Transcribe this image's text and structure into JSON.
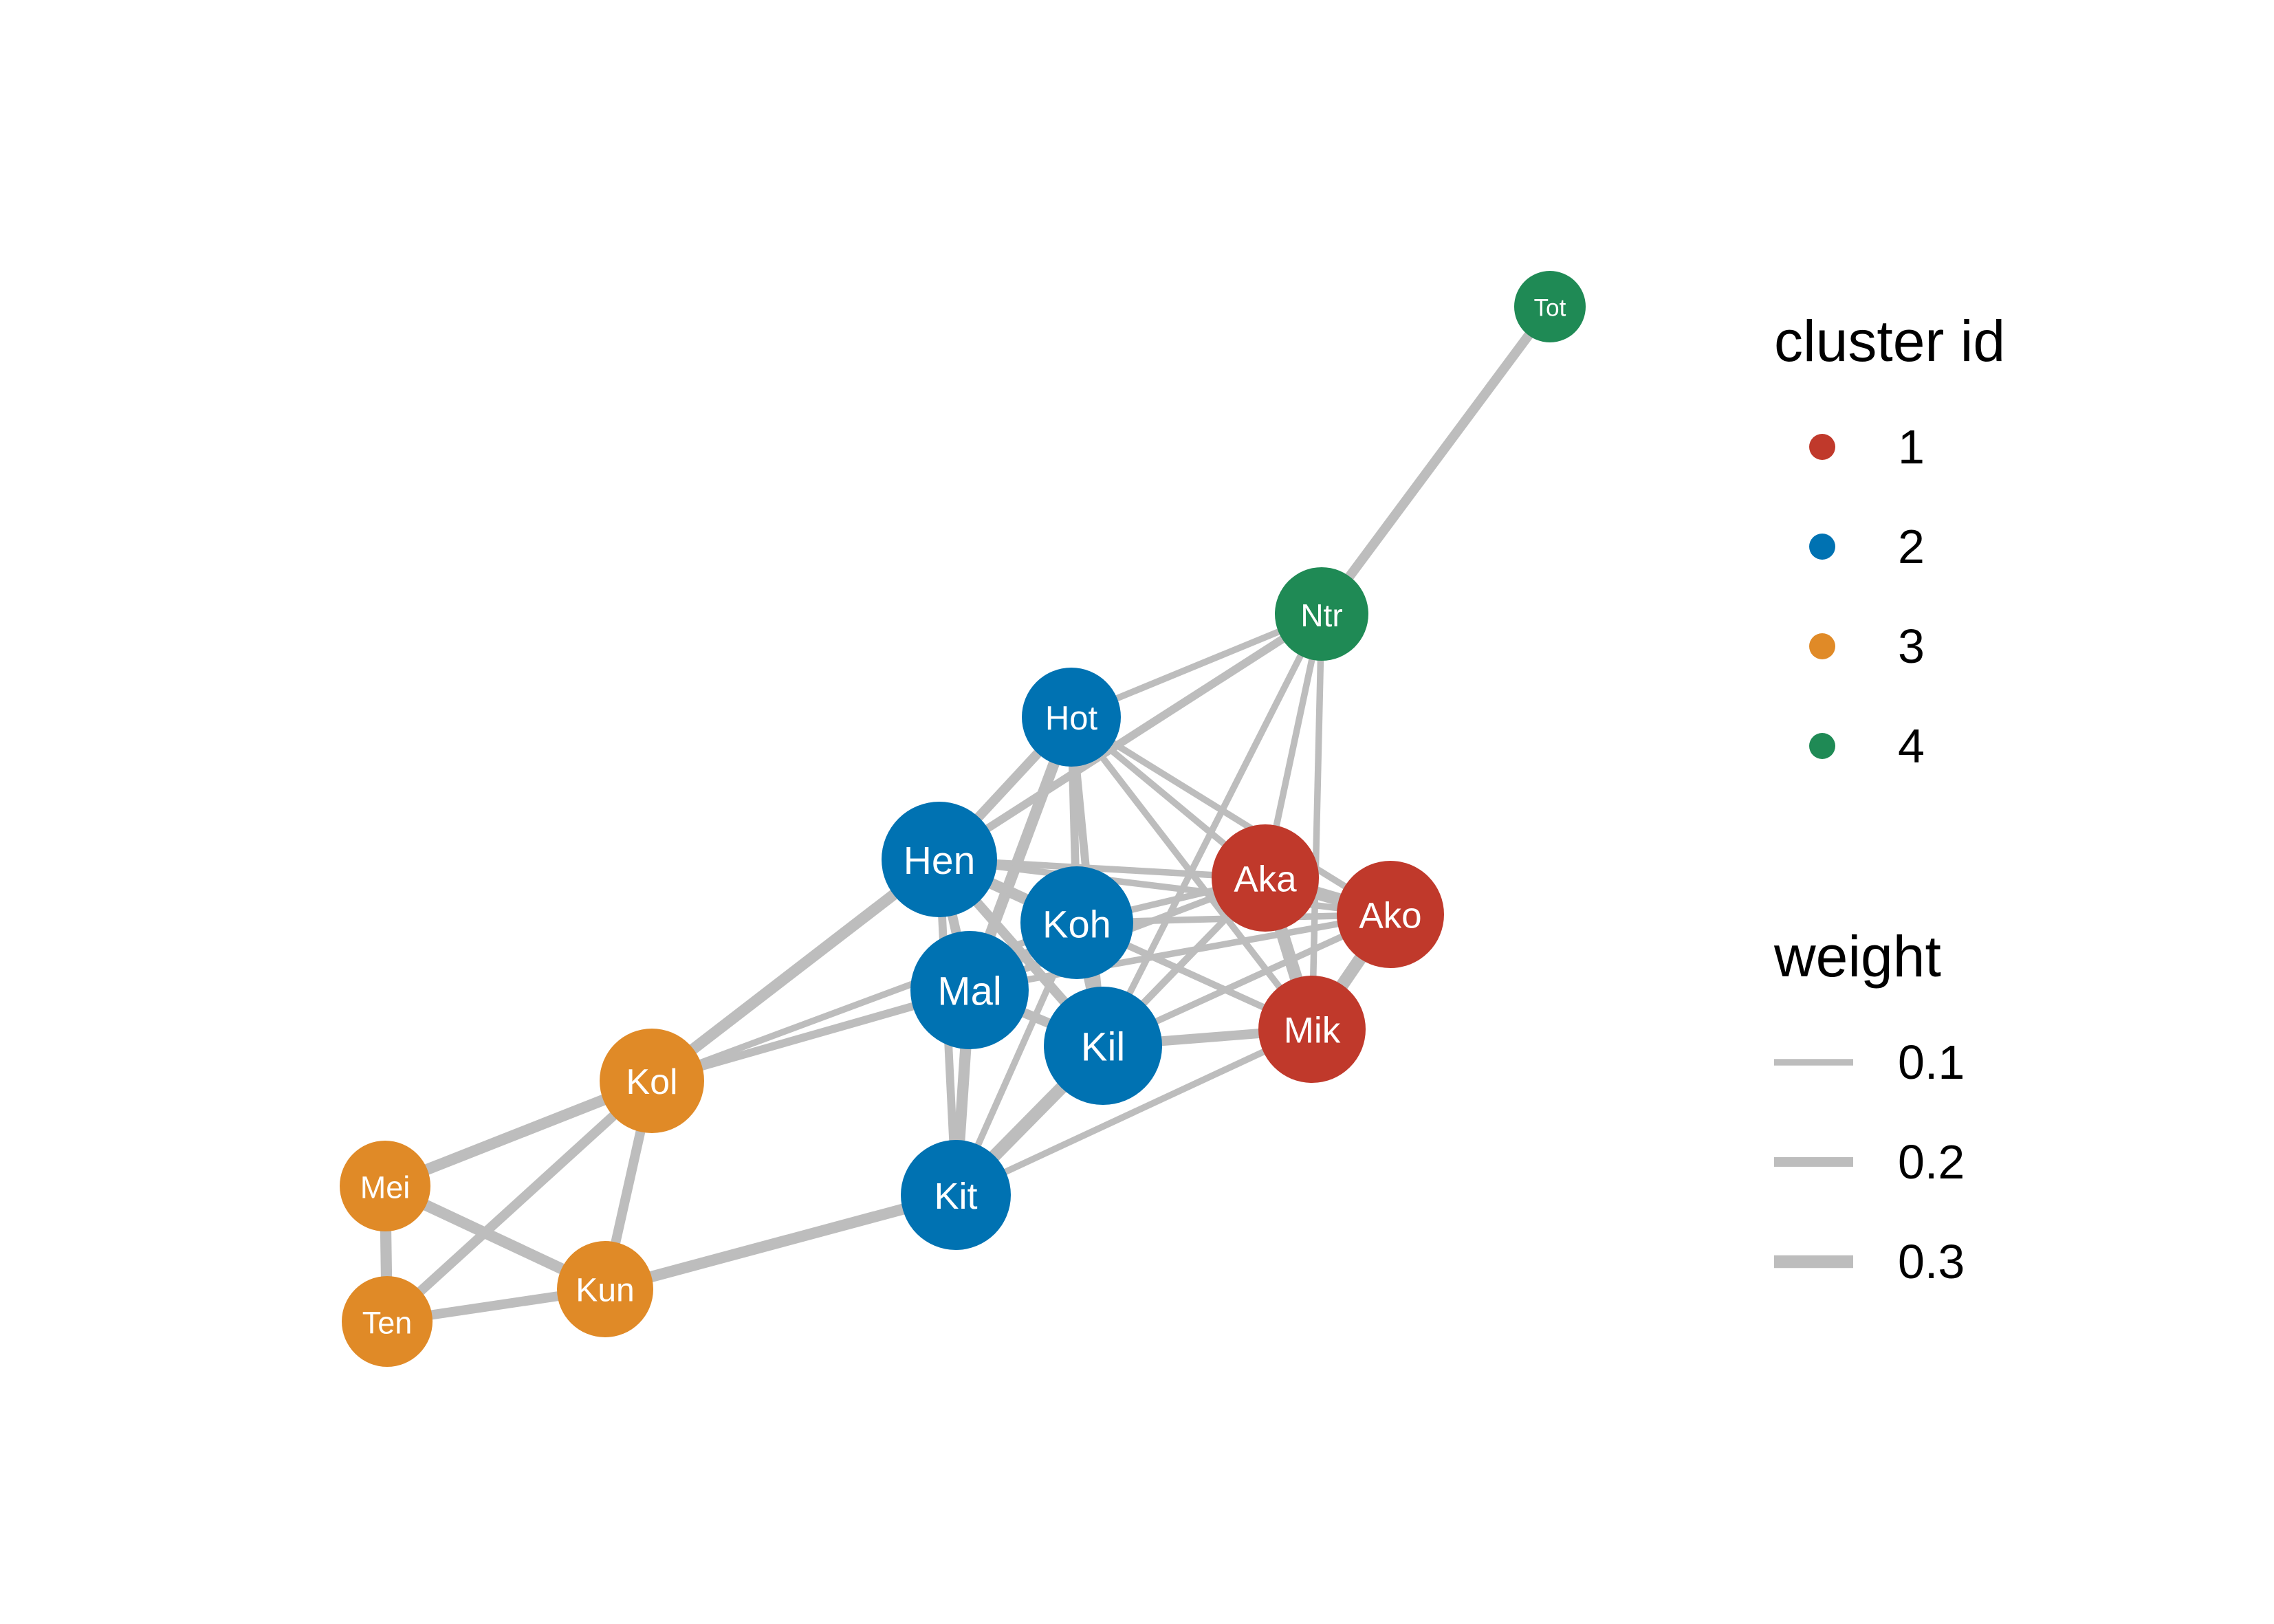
{
  "colors": {
    "edge": "#bdbdbd",
    "1": "#c0392b",
    "2": "#0072b2",
    "3": "#e08a27",
    "4": "#1f8a55"
  },
  "nodes": [
    {
      "id": "Tot",
      "label": "Tot",
      "cluster": "4"
    },
    {
      "id": "Ntr",
      "label": "Ntr",
      "cluster": "4"
    },
    {
      "id": "Hot",
      "label": "Hot",
      "cluster": "2"
    },
    {
      "id": "Hen",
      "label": "Hen",
      "cluster": "2"
    },
    {
      "id": "Koh",
      "label": "Koh",
      "cluster": "2"
    },
    {
      "id": "Mal",
      "label": "Mal",
      "cluster": "2"
    },
    {
      "id": "Kil",
      "label": "Kil",
      "cluster": "2"
    },
    {
      "id": "Kit",
      "label": "Kit",
      "cluster": "2"
    },
    {
      "id": "Aka",
      "label": "Aka",
      "cluster": "1"
    },
    {
      "id": "Ako",
      "label": "Ako",
      "cluster": "1"
    },
    {
      "id": "Mik",
      "label": "Mik",
      "cluster": "1"
    },
    {
      "id": "Kol",
      "label": "Kol",
      "cluster": "3"
    },
    {
      "id": "Mei",
      "label": "Mei",
      "cluster": "3"
    },
    {
      "id": "Ten",
      "label": "Ten",
      "cluster": "3"
    },
    {
      "id": "Kun",
      "label": "Kun",
      "cluster": "3"
    }
  ],
  "edges": [
    {
      "source": "Tot",
      "target": "Ntr",
      "weight": 0.2
    },
    {
      "source": "Ntr",
      "target": "Hot",
      "weight": 0.1
    },
    {
      "source": "Ntr",
      "target": "Hen",
      "weight": 0.15
    },
    {
      "source": "Ntr",
      "target": "Aka",
      "weight": 0.1
    },
    {
      "source": "Ntr",
      "target": "Mik",
      "weight": 0.1
    },
    {
      "source": "Ntr",
      "target": "Kil",
      "weight": 0.1
    },
    {
      "source": "Hot",
      "target": "Hen",
      "weight": 0.2
    },
    {
      "source": "Hot",
      "target": "Koh",
      "weight": 0.15
    },
    {
      "source": "Hot",
      "target": "Mal",
      "weight": 0.25
    },
    {
      "source": "Hot",
      "target": "Aka",
      "weight": 0.1
    },
    {
      "source": "Hot",
      "target": "Ako",
      "weight": 0.1
    },
    {
      "source": "Hot",
      "target": "Mik",
      "weight": 0.1
    },
    {
      "source": "Hot",
      "target": "Kil",
      "weight": 0.15
    },
    {
      "source": "Hen",
      "target": "Koh",
      "weight": 0.25
    },
    {
      "source": "Hen",
      "target": "Mal",
      "weight": 0.2
    },
    {
      "source": "Hen",
      "target": "Kil",
      "weight": 0.2
    },
    {
      "source": "Hen",
      "target": "Aka",
      "weight": 0.1
    },
    {
      "source": "Hen",
      "target": "Ako",
      "weight": 0.1
    },
    {
      "source": "Hen",
      "target": "Kol",
      "weight": 0.25
    },
    {
      "source": "Hen",
      "target": "Kit",
      "weight": 0.15
    },
    {
      "source": "Hen",
      "target": "Mik",
      "weight": 0.1
    },
    {
      "source": "Koh",
      "target": "Mal",
      "weight": 0.2
    },
    {
      "source": "Koh",
      "target": "Kil",
      "weight": 0.2
    },
    {
      "source": "Koh",
      "target": "Aka",
      "weight": 0.1
    },
    {
      "source": "Koh",
      "target": "Ako",
      "weight": 0.1
    },
    {
      "source": "Koh",
      "target": "Mik",
      "weight": 0.1
    },
    {
      "source": "Koh",
      "target": "Kit",
      "weight": 0.1
    },
    {
      "source": "Mal",
      "target": "Kil",
      "weight": 0.2
    },
    {
      "source": "Mal",
      "target": "Kit",
      "weight": 0.25
    },
    {
      "source": "Mal",
      "target": "Kol",
      "weight": 0.15
    },
    {
      "source": "Mal",
      "target": "Aka",
      "weight": 0.1
    },
    {
      "source": "Mal",
      "target": "Ako",
      "weight": 0.1
    },
    {
      "source": "Kil",
      "target": "Kit",
      "weight": 0.3
    },
    {
      "source": "Kil",
      "target": "Mik",
      "weight": 0.2
    },
    {
      "source": "Kil",
      "target": "Aka",
      "weight": 0.1
    },
    {
      "source": "Kil",
      "target": "Ako",
      "weight": 0.1
    },
    {
      "source": "Kit",
      "target": "Aka",
      "weight": 0.1
    },
    {
      "source": "Kit",
      "target": "Mik",
      "weight": 0.1
    },
    {
      "source": "Kit",
      "target": "Kun",
      "weight": 0.25
    },
    {
      "source": "Kol",
      "target": "Koh",
      "weight": 0.1
    },
    {
      "source": "Aka",
      "target": "Ako",
      "weight": 0.3
    },
    {
      "source": "Aka",
      "target": "Mik",
      "weight": 0.3
    },
    {
      "source": "Ako",
      "target": "Mik",
      "weight": 0.3
    },
    {
      "source": "Kol",
      "target": "Mei",
      "weight": 0.25
    },
    {
      "source": "Kol",
      "target": "Ten",
      "weight": 0.2
    },
    {
      "source": "Kol",
      "target": "Kun",
      "weight": 0.2
    },
    {
      "source": "Mei",
      "target": "Ten",
      "weight": 0.25
    },
    {
      "source": "Mei",
      "target": "Kun",
      "weight": 0.25
    },
    {
      "source": "Ten",
      "target": "Kun",
      "weight": 0.2
    }
  ],
  "legend": {
    "cluster_title": "cluster id",
    "clusters": [
      {
        "label": "1",
        "key": "1"
      },
      {
        "label": "2",
        "key": "2"
      },
      {
        "label": "3",
        "key": "3"
      },
      {
        "label": "4",
        "key": "4"
      }
    ],
    "weight_title": "weight",
    "weights": [
      {
        "label": "0.1",
        "value": 0.1
      },
      {
        "label": "0.2",
        "value": 0.2
      },
      {
        "label": "0.3",
        "value": 0.3
      }
    ]
  }
}
